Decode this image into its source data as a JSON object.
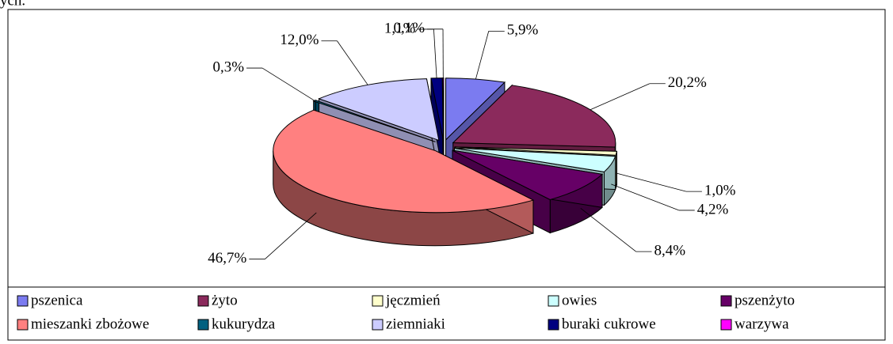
{
  "page_text": "ych.",
  "chart_data": {
    "type": "pie",
    "categories": [
      "pszenica",
      "żyto",
      "jęczmień",
      "owies",
      "pszenżyto",
      "mieszanki zbożowe",
      "kukurydza",
      "ziemniaki",
      "buraki cukrowe",
      "warzywa"
    ],
    "values": [
      5.9,
      20.2,
      1.0,
      4.2,
      8.4,
      46.7,
      0.3,
      12.0,
      1.1,
      0.1
    ],
    "value_labels": [
      "5,9%",
      "20,2%",
      "1,0%",
      "4,2%",
      "8,4%",
      "46,7%",
      "0,3%",
      "12,0%",
      "1,1%",
      "0,1%"
    ],
    "colors": [
      "#7b7bf0",
      "#8b2a5c",
      "#ffffcc",
      "#ccffff",
      "#660066",
      "#ff8080",
      "#006080",
      "#ccccff",
      "#000080",
      "#ff00ff"
    ],
    "legend": "bottom"
  }
}
